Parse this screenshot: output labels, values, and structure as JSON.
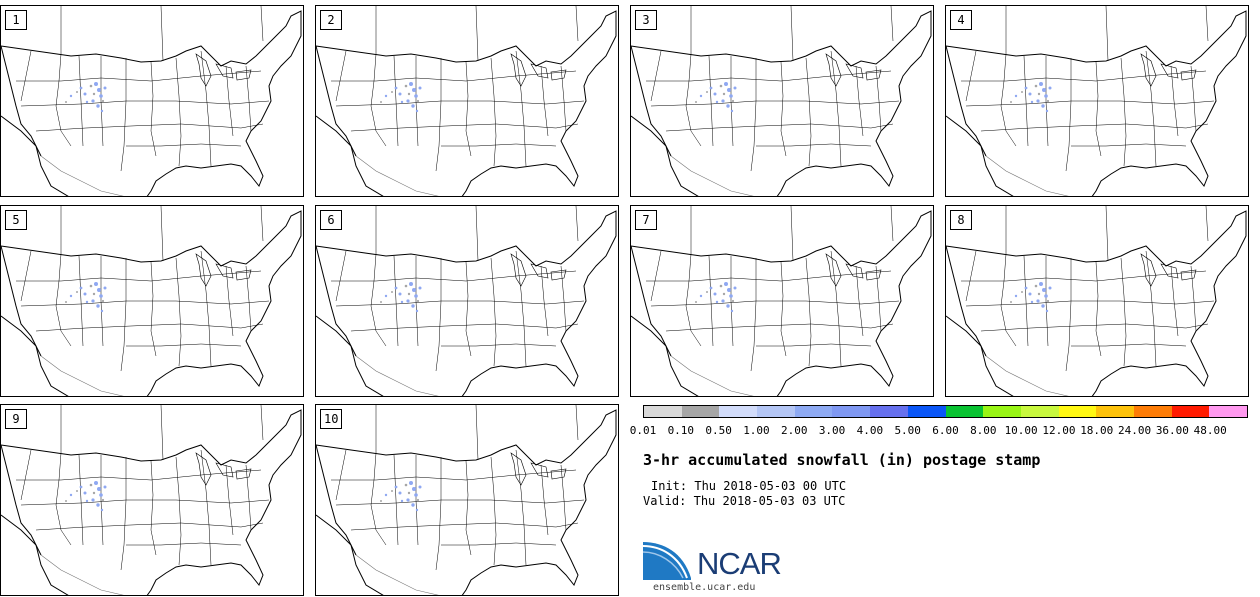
{
  "panels": [
    "1",
    "2",
    "3",
    "4",
    "5",
    "6",
    "7",
    "8",
    "9",
    "10"
  ],
  "legend": {
    "colors": [
      "#d9d9d9",
      "#a6a6a6",
      "#d2dcfa",
      "#b4c6f5",
      "#8eaaf3",
      "#7f98f2",
      "#6670ee",
      "#0a56f7",
      "#09c332",
      "#99f515",
      "#c8f83e",
      "#fff813",
      "#fdc20b",
      "#fd7c06",
      "#ff1a00",
      "#ff99ef"
    ],
    "ticks": [
      "0.01",
      "0.10",
      "0.50",
      "1.00",
      "2.00",
      "3.00",
      "4.00",
      "5.00",
      "6.00",
      "8.00",
      "10.00",
      "12.00",
      "18.00",
      "24.00",
      "36.00",
      "48.00"
    ]
  },
  "title": "3-hr accumulated snowfall (in) postage stamp",
  "init_label": "Init:",
  "init_value": "Thu 2018-05-03 00 UTC",
  "valid_label": "Valid:",
  "valid_value": "Thu 2018-05-03 03 UTC",
  "logo_text": "NCAR",
  "url": "ensemble.ucar.edu"
}
